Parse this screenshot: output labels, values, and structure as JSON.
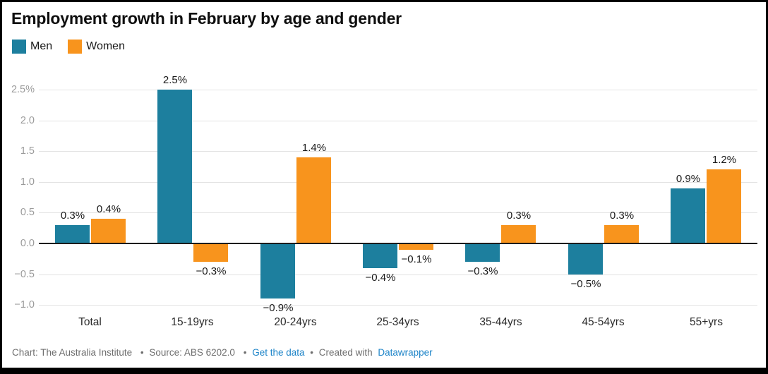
{
  "header": {
    "title": "Employment growth in February by age and gender"
  },
  "legend": {
    "items": [
      {
        "label": "Men",
        "color": "#1d7f9e"
      },
      {
        "label": "Women",
        "color": "#f8941d"
      }
    ]
  },
  "chart_data": {
    "type": "bar",
    "title": "Employment growth in February by age and gender",
    "categories": [
      "Total",
      "15-19yrs",
      "20-24yrs",
      "25-34yrs",
      "35-44yrs",
      "45-54yrs",
      "55+yrs"
    ],
    "series": [
      {
        "name": "Men",
        "color": "#1d7f9e",
        "values": [
          0.3,
          2.5,
          -0.9,
          -0.4,
          -0.3,
          -0.5,
          0.9
        ],
        "labels": [
          "0.3%",
          "2.5%",
          "−0.9%",
          "−0.4%",
          "−0.3%",
          "−0.5%",
          "0.9%"
        ]
      },
      {
        "name": "Women",
        "color": "#f8941d",
        "values": [
          0.4,
          -0.3,
          1.4,
          -0.1,
          0.3,
          0.3,
          1.2
        ],
        "labels": [
          "0.4%",
          "−0.3%",
          "1.4%",
          "−0.1%",
          "0.3%",
          "0.3%",
          "1.2%"
        ]
      }
    ],
    "xlabel": "",
    "ylabel": "",
    "y_ticks": [
      {
        "value": 2.5,
        "label": "2.5%"
      },
      {
        "value": 2.0,
        "label": "2.0"
      },
      {
        "value": 1.5,
        "label": "1.5"
      },
      {
        "value": 1.0,
        "label": "1.0"
      },
      {
        "value": 0.5,
        "label": "0.5"
      },
      {
        "value": 0.0,
        "label": "0.0"
      },
      {
        "value": -0.5,
        "label": "−0.5"
      },
      {
        "value": -1.0,
        "label": "−1.0"
      }
    ],
    "ylim": [
      -1.0,
      2.5
    ],
    "grid": true,
    "legend_position": "top-left"
  },
  "footer": {
    "credit": "Chart: The Australia Institute",
    "separator": "•",
    "source": "Source: ABS 6202.0",
    "get_data_link": "Get the data",
    "created_with": "Created with",
    "datawrapper_link": "Datawrapper",
    "link_color": "#1d84c8"
  },
  "colors": {
    "men": "#1d7f9e",
    "women": "#f8941d",
    "gridline": "#e3e3e3",
    "zero_line": "#1c1c1c",
    "axis_text": "#9b9b9b",
    "footer_text": "#6e6e6e",
    "frame": "#000000"
  }
}
